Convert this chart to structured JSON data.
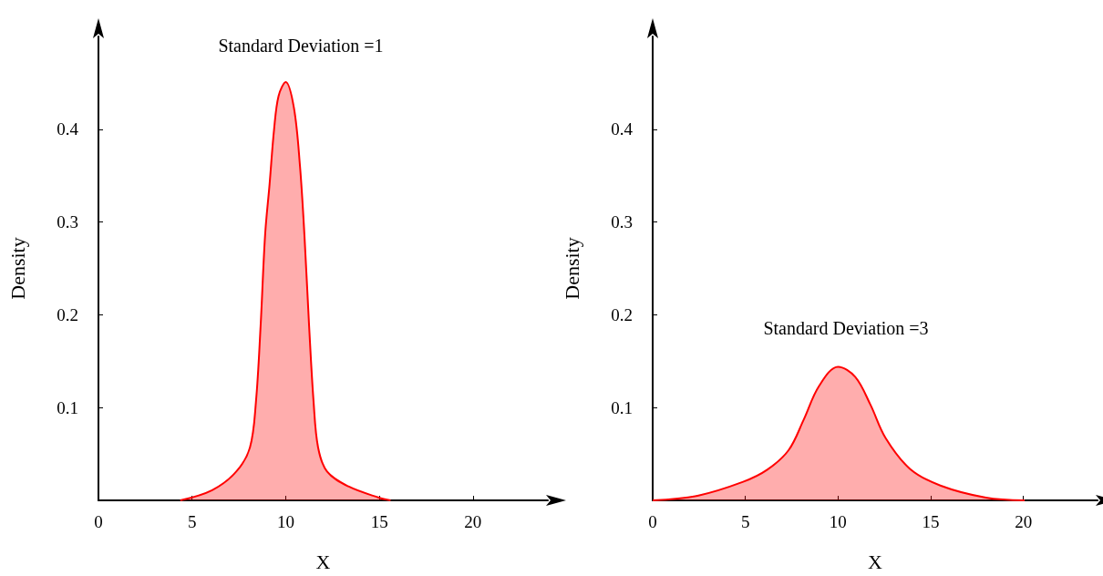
{
  "chart_data": [
    {
      "type": "area",
      "xlabel": "X",
      "ylabel": "Density",
      "xlim": [
        0,
        24
      ],
      "xticks": [
        0,
        5,
        10,
        15,
        20
      ],
      "ylim": [
        0,
        0.5
      ],
      "yticks": [
        0.1,
        0.2,
        0.3,
        0.4
      ],
      "grid": false,
      "annotations": [
        "Standard Deviation =1"
      ],
      "series": [
        {
          "color": "#ff0000",
          "x": [
            4.37,
            6.07,
            7.36,
            8.09,
            8.41,
            8.66,
            8.9,
            9.14,
            9.38,
            9.62,
            10.0,
            10.44,
            10.76,
            11.0,
            11.25,
            11.49,
            11.73,
            12.21,
            13.35,
            14.97,
            15.6
          ],
          "values": [
            0,
            0.011,
            0.031,
            0.057,
            0.106,
            0.188,
            0.286,
            0.341,
            0.4,
            0.436,
            0.451,
            0.423,
            0.361,
            0.286,
            0.188,
            0.106,
            0.057,
            0.031,
            0.015,
            0.003,
            0
          ]
        }
      ]
    },
    {
      "type": "area",
      "xlabel": "X",
      "ylabel": "Density",
      "xlim": [
        0,
        24
      ],
      "xticks": [
        0,
        5,
        10,
        15,
        20
      ],
      "ylim": [
        0,
        0.5
      ],
      "yticks": [
        0.1,
        0.2,
        0.3,
        0.4
      ],
      "grid": false,
      "annotations": [
        "Standard Deviation =3"
      ],
      "series": [
        {
          "color": "#ff0000",
          "x": [
            0,
            2.42,
            4.88,
            6.18,
            7.33,
            8.15,
            8.97,
            10.0,
            10.93,
            11.75,
            12.57,
            13.88,
            15.52,
            17.98,
            20.07
          ],
          "values": [
            0,
            0.005,
            0.02,
            0.033,
            0.054,
            0.087,
            0.123,
            0.144,
            0.133,
            0.103,
            0.067,
            0.034,
            0.016,
            0.003,
            0
          ]
        }
      ]
    }
  ]
}
